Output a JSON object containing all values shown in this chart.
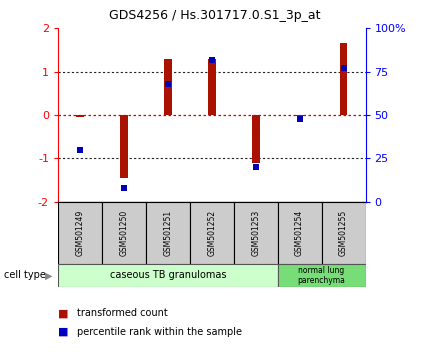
{
  "title": "GDS4256 / Hs.301717.0.S1_3p_at",
  "samples": [
    "GSM501249",
    "GSM501250",
    "GSM501251",
    "GSM501252",
    "GSM501253",
    "GSM501254",
    "GSM501255"
  ],
  "transformed_counts": [
    -0.05,
    -1.45,
    1.3,
    1.3,
    -1.1,
    -0.02,
    1.65
  ],
  "percentile_ranks": [
    30,
    8,
    68,
    82,
    20,
    48,
    77
  ],
  "ylim": [
    -2,
    2
  ],
  "yticks_left": [
    -2,
    -1,
    0,
    1,
    2
  ],
  "yticks_right": [
    0,
    25,
    50,
    75,
    100
  ],
  "bar_color": "#aa1100",
  "dot_color": "#0000bb",
  "red_line_color": "#cc0000",
  "black_line_color": "#222222",
  "group1_label": "caseous TB granulomas",
  "group2_label": "normal lung\nparenchyma",
  "group1_color": "#ccffcc",
  "group2_color": "#77dd77",
  "group1_samples": [
    0,
    1,
    2,
    3,
    4
  ],
  "group2_samples": [
    5,
    6
  ],
  "legend_red": "transformed count",
  "legend_blue": "percentile rank within the sample",
  "cell_type_label": "cell type",
  "bg_color": "#ffffff",
  "sample_bg_color": "#cccccc"
}
